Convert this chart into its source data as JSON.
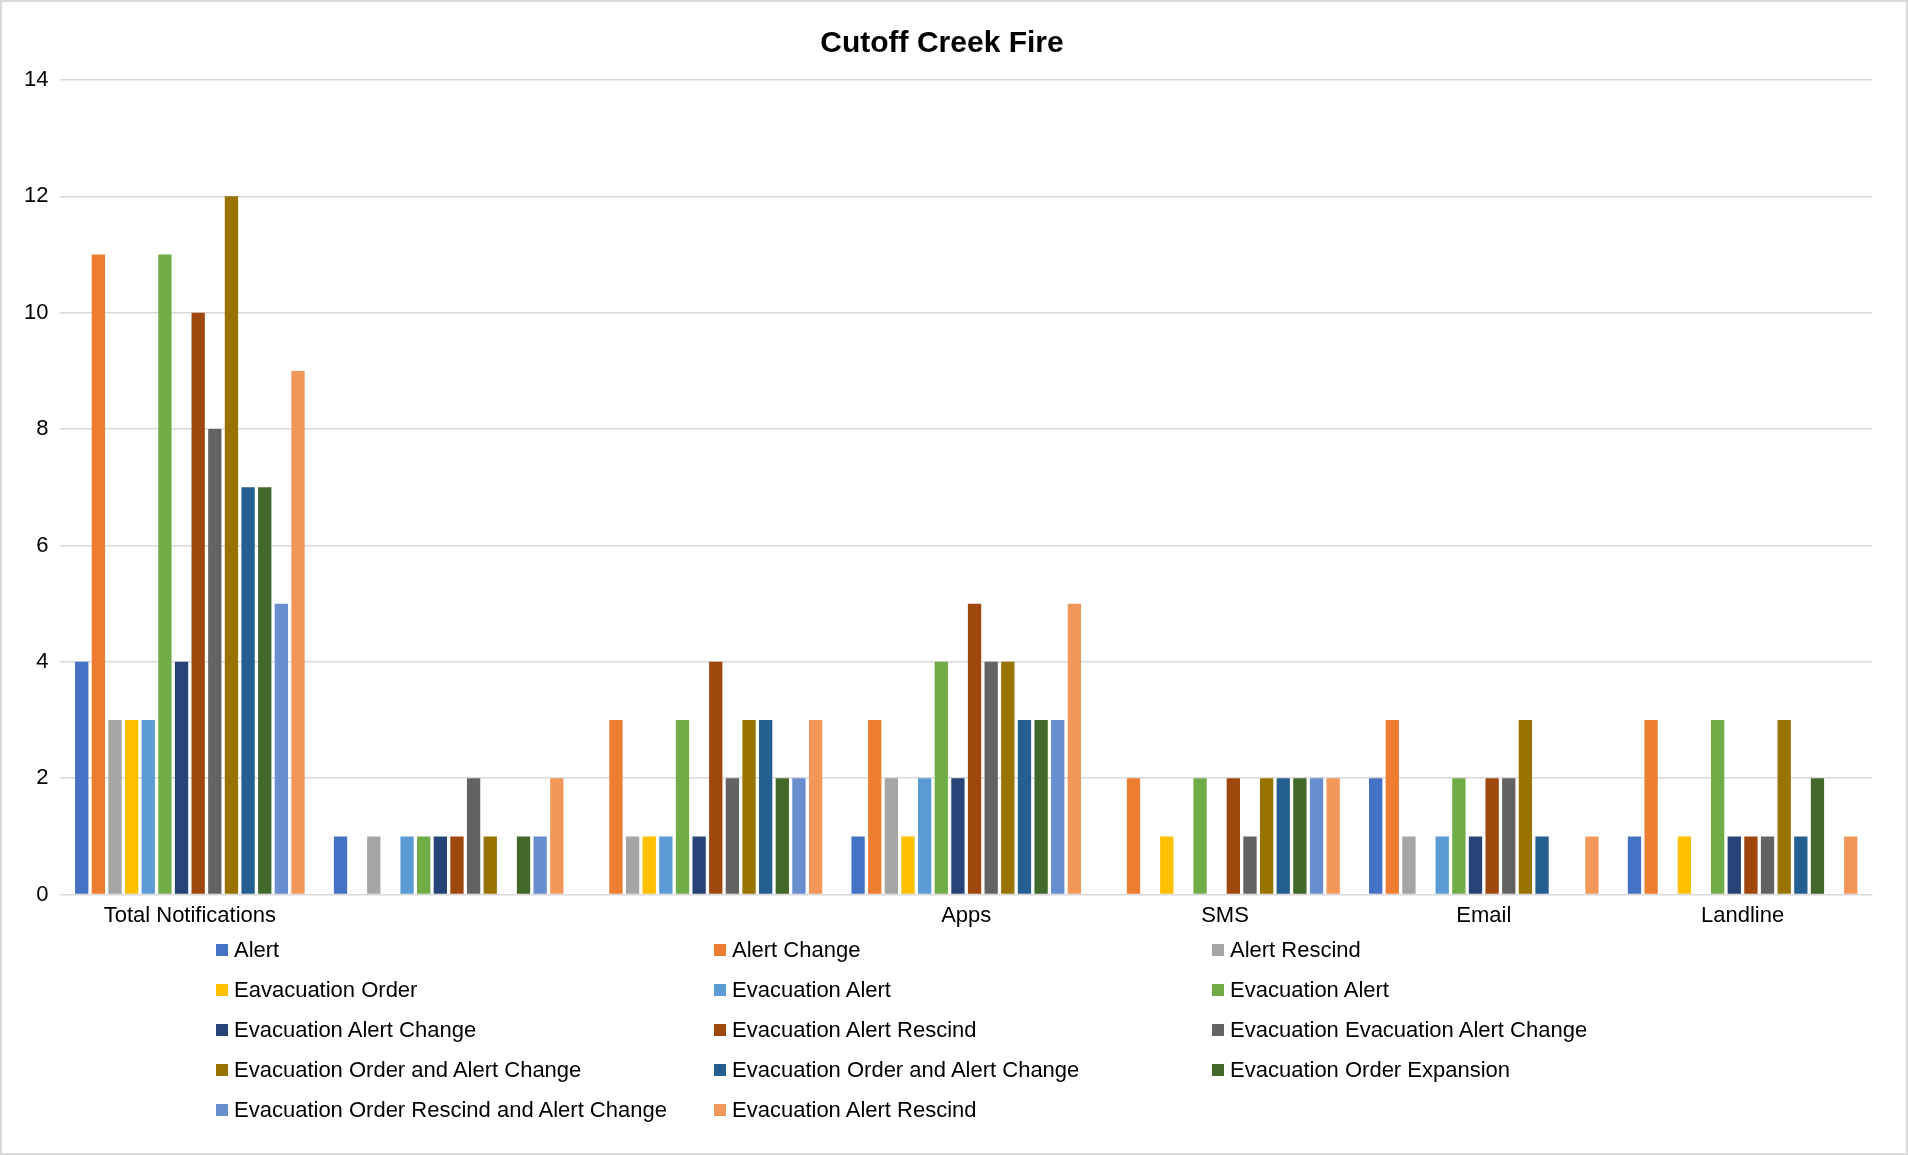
{
  "chart_data": {
    "type": "bar",
    "title": "Cutoff Creek Fire",
    "categories": [
      "Total Notifications",
      null,
      null,
      "Apps",
      "SMS",
      "Email",
      "Landline"
    ],
    "series": [
      {
        "name": "Alert",
        "color": "#4472c4",
        "values": [
          4,
          1,
          0,
          1,
          0,
          2,
          1
        ]
      },
      {
        "name": "Alert Change",
        "color": "#ed7d31",
        "values": [
          11,
          0,
          3,
          3,
          2,
          3,
          3
        ]
      },
      {
        "name": "Alert Rescind",
        "color": "#a5a5a5",
        "values": [
          3,
          1,
          1,
          2,
          0,
          1,
          0
        ]
      },
      {
        "name": "Eavacuation Order",
        "color": "#ffc000",
        "values": [
          3,
          0,
          1,
          1,
          1,
          0,
          1
        ]
      },
      {
        "name": "Evacuation Alert",
        "color": "#5b9bd5",
        "values": [
          3,
          1,
          1,
          2,
          0,
          1,
          0
        ]
      },
      {
        "name": "Evacuation Alert",
        "color": "#70ad47",
        "values": [
          11,
          1,
          3,
          4,
          2,
          2,
          3
        ]
      },
      {
        "name": "Evacuation Alert Change",
        "color": "#264478",
        "values": [
          4,
          1,
          1,
          2,
          0,
          1,
          1
        ]
      },
      {
        "name": "Evacuation Alert Rescind",
        "color": "#9e480e",
        "values": [
          10,
          1,
          4,
          5,
          2,
          2,
          1
        ]
      },
      {
        "name": "Evacuation Evacuation Alert Change",
        "color": "#636363",
        "values": [
          8,
          2,
          2,
          4,
          1,
          2,
          1
        ]
      },
      {
        "name": "Evacuation Order and Alert Change",
        "color": "#997300",
        "values": [
          12,
          1,
          3,
          4,
          2,
          3,
          3
        ]
      },
      {
        "name": "Evacuation Order and Alert Change",
        "color": "#255e91",
        "values": [
          7,
          0,
          3,
          3,
          2,
          1,
          1
        ]
      },
      {
        "name": "Evacuation Order Expansion",
        "color": "#43682b",
        "values": [
          7,
          1,
          2,
          3,
          2,
          0,
          2
        ]
      },
      {
        "name": "Evacuation Order Rescind and Alert Change",
        "color": "#698ed0",
        "values": [
          5,
          1,
          2,
          3,
          2,
          0,
          0
        ]
      },
      {
        "name": "Evacuation Alert Rescind",
        "color": "#f1975a",
        "values": [
          9,
          2,
          3,
          5,
          2,
          1,
          1
        ]
      }
    ],
    "ylim": [
      0,
      14
    ],
    "yticks": [
      0,
      2,
      4,
      6,
      8,
      10,
      12,
      14
    ],
    "grid": "y",
    "legend": "bottom"
  }
}
